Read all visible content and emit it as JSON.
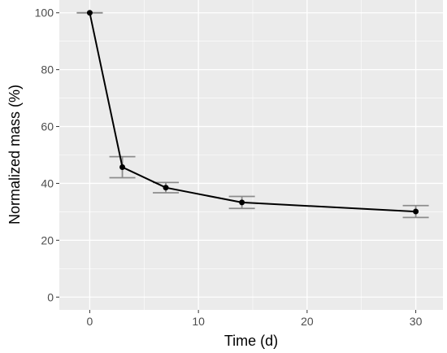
{
  "chart_data": {
    "type": "line",
    "xlabel": "Time (d)",
    "ylabel": "Normalized mass (%)",
    "xlim": [
      -2.8,
      32.5
    ],
    "ylim": [
      -4.5,
      104.5
    ],
    "x_ticks": [
      0,
      10,
      20,
      30
    ],
    "x_minor_ticks": [
      5,
      15,
      25
    ],
    "y_ticks": [
      0,
      20,
      40,
      60,
      80,
      100
    ],
    "y_minor_ticks": [
      10,
      30,
      50,
      70,
      90
    ],
    "x_tick_labels": [
      "0",
      "10",
      "20",
      "30"
    ],
    "y_tick_labels": [
      "0",
      "20",
      "40",
      "60",
      "80",
      "100"
    ],
    "grid": true,
    "series": [
      {
        "x": [
          0,
          3,
          7,
          14,
          30
        ],
        "y": [
          100,
          45.7,
          38.5,
          33.3,
          30.1
        ],
        "error": [
          0,
          3.7,
          1.8,
          2.1,
          2.1
        ]
      }
    ],
    "colors": {
      "panel": "#ebebeb",
      "grid_major": "#ffffff",
      "line": "#000000",
      "point": "#000000",
      "errorbar": "#8c8c8c"
    }
  }
}
